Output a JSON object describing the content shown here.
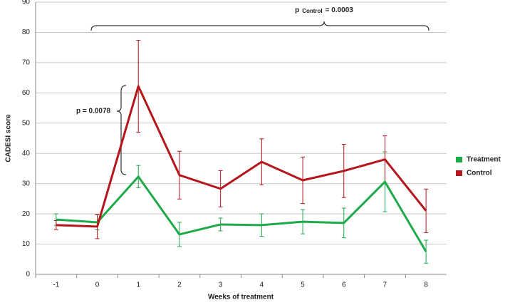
{
  "chart_data": {
    "type": "line",
    "x_label": "Weeks of treatment",
    "y_label": "CADESI  score",
    "categories": [
      "-1",
      "0",
      "1",
      "2",
      "3",
      "4",
      "5",
      "6",
      "7",
      "8"
    ],
    "series": [
      {
        "name": "Treatment",
        "color": "#1faa4a",
        "values": [
          18.1,
          17.2,
          32.3,
          13.2,
          16.5,
          16.3,
          17.4,
          17.0,
          30.6,
          7.5
        ],
        "errors": [
          1.9,
          2.5,
          3.7,
          4.0,
          2.1,
          3.7,
          4.0,
          4.9,
          9.9,
          3.8
        ]
      },
      {
        "name": "Control",
        "color": "#b5161b",
        "values": [
          16.3,
          15.8,
          62.2,
          32.8,
          28.3,
          37.2,
          31.1,
          34.2,
          38.0,
          21.0
        ],
        "errors": [
          1.5,
          4.0,
          15.2,
          7.9,
          6.0,
          7.6,
          7.7,
          8.8,
          7.8,
          7.2
        ]
      }
    ],
    "ylim": [
      0,
      90
    ],
    "yticks": [
      0,
      10,
      20,
      30,
      40,
      50,
      60,
      70,
      80,
      90
    ],
    "grid": true,
    "legend": "right",
    "annotations": [
      {
        "text": "p = 0.0078"
      },
      {
        "prefix": "p",
        "subscript": "Control",
        "suffix": "= 0.0003"
      }
    ]
  }
}
